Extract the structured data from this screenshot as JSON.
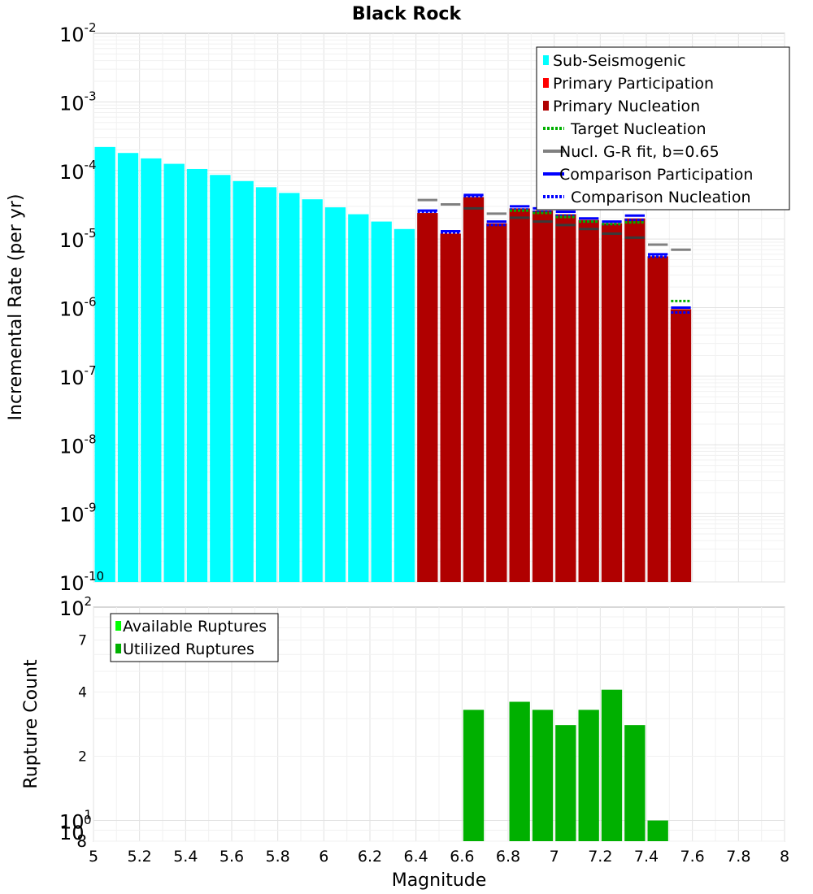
{
  "chart_data": [
    {
      "type": "bar",
      "title": "Black Rock",
      "xlabel": "",
      "ylabel": "Incremental Rate (per yr)",
      "yscale": "log",
      "xlim": [
        5,
        8
      ],
      "ylim": [
        1e-10,
        0.01
      ],
      "y_major_ticks": [
        {
          "base": "10",
          "exp": "-10"
        },
        {
          "base": "10",
          "exp": "-9"
        },
        {
          "base": "10",
          "exp": "-8"
        },
        {
          "base": "10",
          "exp": "-7"
        },
        {
          "base": "10",
          "exp": "-6"
        },
        {
          "base": "10",
          "exp": "-5"
        },
        {
          "base": "10",
          "exp": "-4"
        },
        {
          "base": "10",
          "exp": "-3"
        },
        {
          "base": "10",
          "exp": "-2"
        }
      ],
      "legend": {
        "position": "top-right",
        "entries": [
          {
            "label": "Sub-Seismogenic",
            "color": "#00ffff",
            "style": "bar"
          },
          {
            "label": "Primary Participation",
            "color": "#ff0000",
            "style": "bar"
          },
          {
            "label": "Primary Nucleation",
            "color": "#b00000",
            "style": "bar"
          },
          {
            "label": "Target Nucleation",
            "color": "#00b000",
            "style": "dotted"
          },
          {
            "label": "Nucl. G-R fit, b=0.65",
            "color": "#808080",
            "style": "solid"
          },
          {
            "label": "Comparison Participation",
            "color": "#0000ff",
            "style": "solid"
          },
          {
            "label": "Comparison Nucleation",
            "color": "#0000ff",
            "style": "dotted"
          }
        ]
      },
      "bin_width": 0.1,
      "sub_seismogenic": {
        "color": "#00ffff",
        "x": [
          5.05,
          5.15,
          5.25,
          5.35,
          5.45,
          5.55,
          5.65,
          5.75,
          5.85,
          5.95,
          6.05,
          6.15,
          6.25,
          6.35
        ],
        "values": [
          0.00022,
          0.00018,
          0.00015,
          0.000125,
          0.000105,
          8.6e-05,
          7e-05,
          5.7e-05,
          4.7e-05,
          3.8e-05,
          2.9e-05,
          2.3e-05,
          1.8e-05,
          1.4e-05
        ]
      },
      "primary_nucleation": {
        "color": "#b00000",
        "x": [
          6.45,
          6.55,
          6.65,
          6.75,
          6.85,
          6.95,
          7.05,
          7.15,
          7.25,
          7.35,
          7.45,
          7.55
        ],
        "values": [
          2.4e-05,
          1.2e-05,
          4.1e-05,
          1.7e-05,
          2.8e-05,
          2.6e-05,
          2.3e-05,
          1.9e-05,
          1.7e-05,
          2e-05,
          5.6e-06,
          9.5e-07
        ]
      },
      "nucl_gr_fit": {
        "color": "#808080",
        "x": [
          6.45,
          6.55,
          6.65,
          6.75,
          6.85,
          6.95,
          7.05,
          7.15,
          7.25,
          7.35,
          7.45,
          7.55
        ],
        "values": [
          3.7e-05,
          3.2e-05,
          2.8e-05,
          2.35e-05,
          2.05e-05,
          1.8e-05,
          1.6e-05,
          1.4e-05,
          1.2e-05,
          1.05e-05,
          8.3e-06,
          7e-06
        ]
      },
      "comparison_participation": {
        "color": "#0000ff",
        "x": [
          6.45,
          6.55,
          6.65,
          6.75,
          6.85,
          6.95,
          7.05,
          7.15,
          7.25,
          7.35,
          7.45,
          7.55
        ],
        "values": [
          2.6e-05,
          1.3e-05,
          4.4e-05,
          1.8e-05,
          3e-05,
          2.8e-05,
          2.5e-05,
          2e-05,
          1.8e-05,
          2.2e-05,
          6e-06,
          1e-06
        ]
      },
      "comparison_nucleation": {
        "color": "#0000ff",
        "x": [
          6.45,
          6.55,
          6.65,
          6.75,
          6.85,
          6.95,
          7.05,
          7.15,
          7.25,
          7.35,
          7.45,
          7.55
        ],
        "values": [
          2.5e-05,
          1.25e-05,
          4.2e-05,
          1.6e-05,
          2.7e-05,
          2.5e-05,
          2.2e-05,
          1.8e-05,
          1.65e-05,
          1.9e-05,
          5.5e-06,
          8.5e-07
        ]
      },
      "target_nucleation": {
        "color": "#00b000",
        "x": [
          6.85,
          6.95,
          7.05,
          7.15,
          7.25,
          7.35,
          7.55
        ],
        "values": [
          2.6e-05,
          2.4e-05,
          2.1e-05,
          1.8e-05,
          1.65e-05,
          1.75e-05,
          1.25e-06
        ]
      }
    },
    {
      "type": "bar",
      "title": "",
      "xlabel": "Magnitude",
      "ylabel": "Rupture Count",
      "yscale": "log",
      "xlim": [
        5,
        8
      ],
      "ylim": [
        8,
        100
      ],
      "x_ticks": [
        "5",
        "5.2",
        "5.4",
        "5.6",
        "5.8",
        "6",
        "6.2",
        "6.4",
        "6.6",
        "6.8",
        "7",
        "7.2",
        "7.4",
        "7.6",
        "7.8",
        "8"
      ],
      "y_major_ticks": [
        {
          "value": 10,
          "base": "10",
          "exp": "1"
        },
        {
          "value": 100,
          "base": "10",
          "exp": "2"
        }
      ],
      "y_minor_ticks": [
        {
          "value": 8,
          "label": "8"
        },
        {
          "value": 20,
          "label": "2"
        },
        {
          "value": 40,
          "label": "4"
        },
        {
          "value": 70,
          "label": "7"
        }
      ],
      "y_major_exp_zero": "0",
      "legend": {
        "position": "top-left",
        "entries": [
          {
            "label": "Available Ruptures",
            "color": "#00ff00",
            "style": "bar"
          },
          {
            "label": "Utilized Ruptures",
            "color": "#00b000",
            "style": "bar"
          }
        ]
      },
      "series": [
        {
          "name": "Utilized Ruptures",
          "color": "#00b000",
          "x": [
            6.65,
            6.85,
            6.95,
            7.05,
            7.15,
            7.25,
            7.35,
            7.45
          ],
          "values": [
            8,
            8,
            8,
            8,
            8,
            8,
            8,
            8
          ],
          "tops": [
            33,
            36,
            33,
            28,
            33,
            41,
            28,
            10
          ]
        }
      ]
    }
  ]
}
